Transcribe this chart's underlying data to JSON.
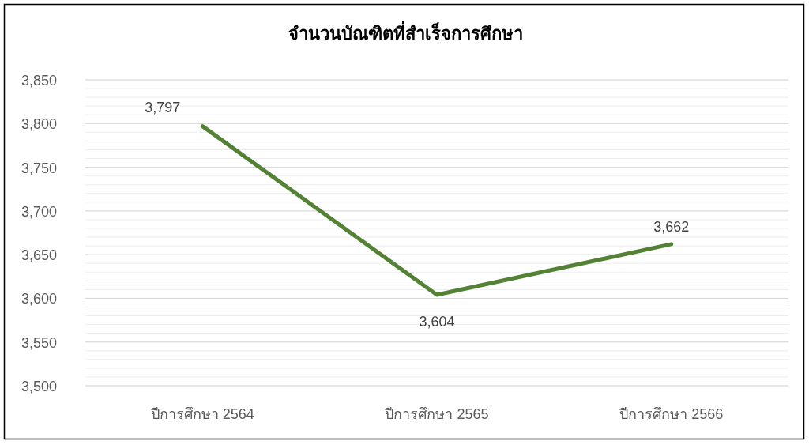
{
  "chart_data": {
    "type": "line",
    "title": "จำนวนบัณฑิตที่สำเร็จการศึกษา",
    "categories": [
      "ปีการศึกษา 2564",
      "ปีการศึกษา 2565",
      "ปีการศึกษา 2566"
    ],
    "series": [
      {
        "color": "#548235",
        "values": [
          3797,
          3604,
          3662
        ],
        "value_labels": [
          "3,797",
          "3,604",
          "3,662"
        ]
      }
    ],
    "ylim": [
      3500,
      3850
    ],
    "yticks": [
      {
        "value": 3500,
        "label": "3,500"
      },
      {
        "value": 3550,
        "label": "3,550"
      },
      {
        "value": 3600,
        "label": "3,600"
      },
      {
        "value": 3650,
        "label": "3,650"
      },
      {
        "value": 3700,
        "label": "3,700"
      },
      {
        "value": 3750,
        "label": "3,750"
      },
      {
        "value": 3800,
        "label": "3,800"
      },
      {
        "value": 3850,
        "label": "3,850"
      }
    ],
    "grid": "y",
    "marker": "none",
    "line_style": "solid"
  }
}
